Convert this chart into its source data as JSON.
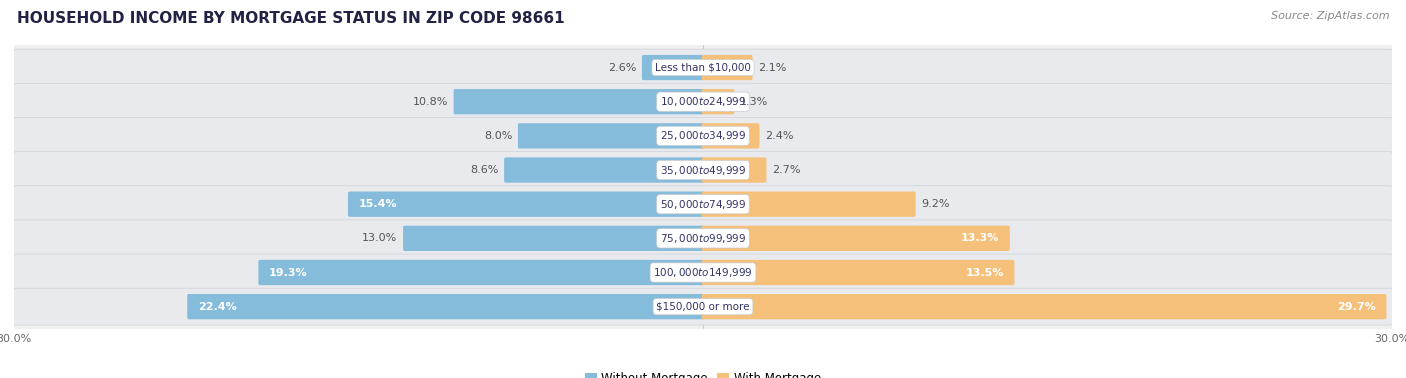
{
  "title": "HOUSEHOLD INCOME BY MORTGAGE STATUS IN ZIP CODE 98661",
  "source": "Source: ZipAtlas.com",
  "categories": [
    "Less than $10,000",
    "$10,000 to $24,999",
    "$25,000 to $34,999",
    "$35,000 to $49,999",
    "$50,000 to $74,999",
    "$75,000 to $99,999",
    "$100,000 to $149,999",
    "$150,000 or more"
  ],
  "without_mortgage": [
    2.6,
    10.8,
    8.0,
    8.6,
    15.4,
    13.0,
    19.3,
    22.4
  ],
  "with_mortgage": [
    2.1,
    1.3,
    2.4,
    2.7,
    9.2,
    13.3,
    13.5,
    29.7
  ],
  "color_without": "#85BBDB",
  "color_with": "#F5C07A",
  "xlim": 30.0,
  "title_fontsize": 11,
  "source_fontsize": 8,
  "label_fontsize": 8,
  "category_fontsize": 7.5,
  "legend_fontsize": 8.5,
  "axis_label_fontsize": 8
}
